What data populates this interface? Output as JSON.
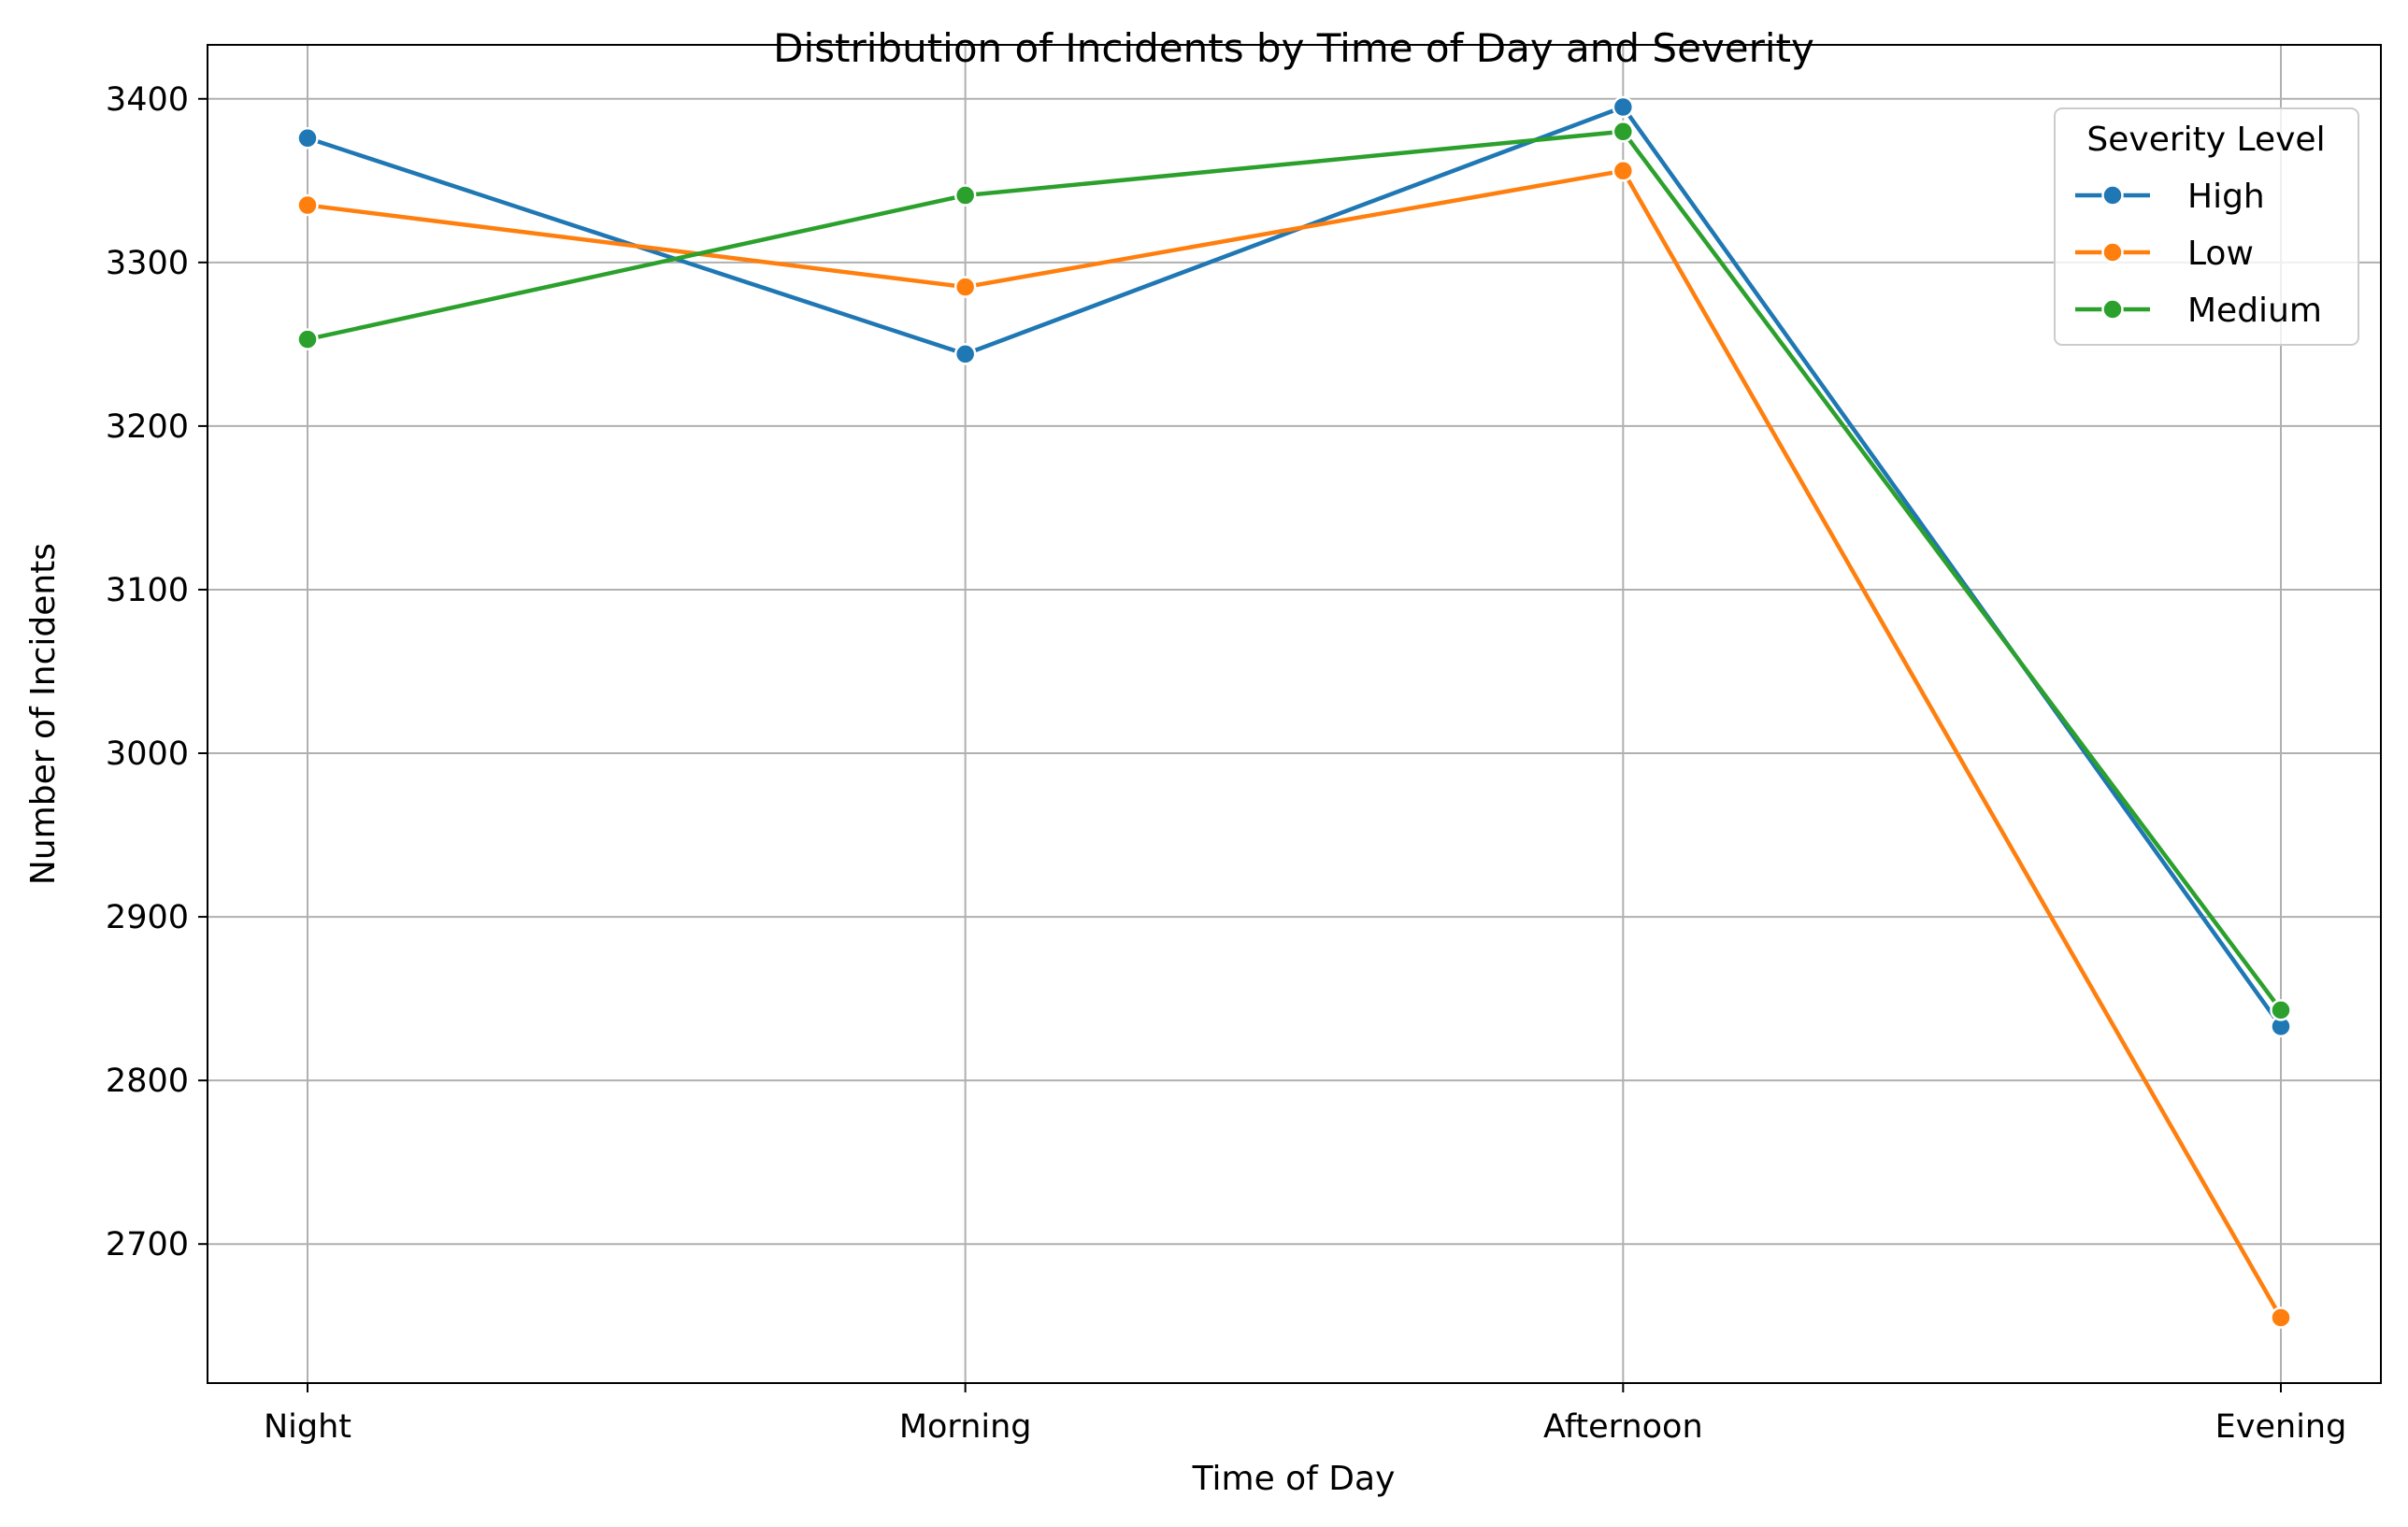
{
  "chart_data": {
    "type": "line",
    "title": "Distribution of Incidents by Time of Day and Severity",
    "xlabel": "Time of Day",
    "ylabel": "Number of Incidents",
    "categories": [
      "Night",
      "Morning",
      "Afternoon",
      "Evening"
    ],
    "yticks": [
      2700,
      2800,
      2900,
      3000,
      3100,
      3200,
      3300,
      3400
    ],
    "ylim": [
      2615,
      3433
    ],
    "grid": true,
    "legend": {
      "title": "Severity Level",
      "placement": "top-right"
    },
    "series": [
      {
        "name": "High",
        "color": "#1f77b4",
        "values": [
          3376,
          3244,
          3395,
          2833
        ]
      },
      {
        "name": "Low",
        "color": "#ff7f0e",
        "values": [
          3335,
          3285,
          3356,
          2655
        ]
      },
      {
        "name": "Medium",
        "color": "#2ca02c",
        "values": [
          3253,
          3341,
          3380,
          2843
        ]
      }
    ]
  }
}
